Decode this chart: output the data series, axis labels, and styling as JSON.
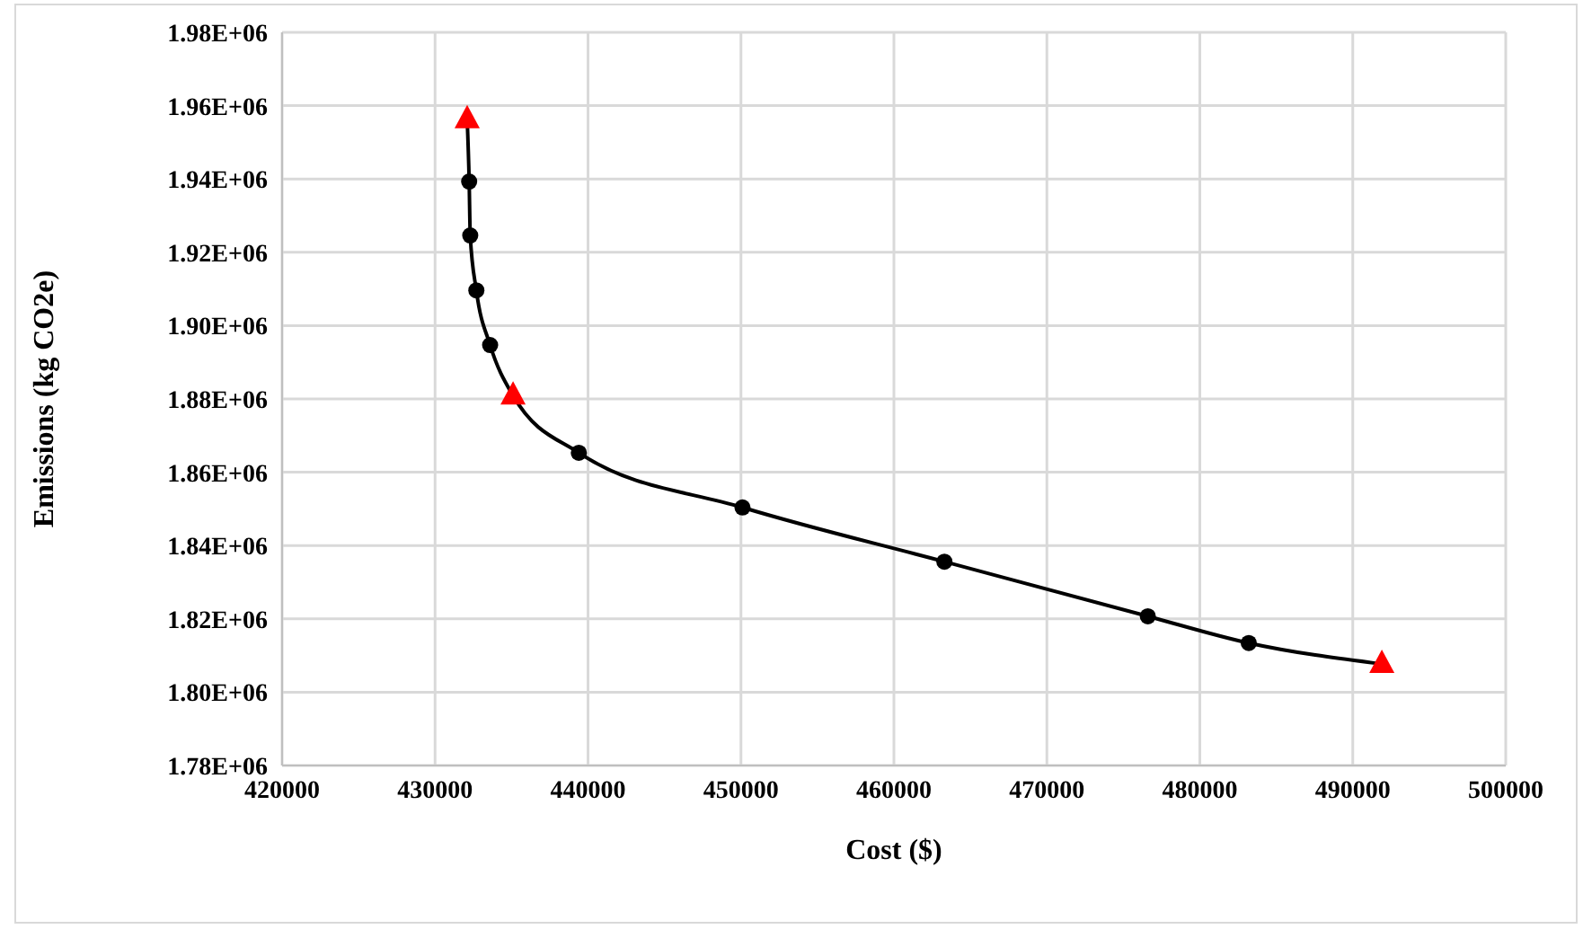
{
  "chart_data": {
    "type": "line",
    "xlabel": "Cost ($)",
    "ylabel": "Emissions (kg CO2e)",
    "xlim": [
      420000,
      500000
    ],
    "xticks": [
      420000,
      430000,
      440000,
      450000,
      460000,
      470000,
      480000,
      490000,
      500000
    ],
    "ylim": [
      1780000,
      1980000
    ],
    "yticks": [
      {
        "value": 1780000,
        "label": "1.78E+06"
      },
      {
        "value": 1800000,
        "label": "1.80E+06"
      },
      {
        "value": 1820000,
        "label": "1.82E+06"
      },
      {
        "value": 1840000,
        "label": "1.84E+06"
      },
      {
        "value": 1860000,
        "label": "1.86E+06"
      },
      {
        "value": 1880000,
        "label": "1.88E+06"
      },
      {
        "value": 1900000,
        "label": "1.90E+06"
      },
      {
        "value": 1920000,
        "label": "1.92E+06"
      },
      {
        "value": 1940000,
        "label": "1.94E+06"
      },
      {
        "value": 1960000,
        "label": "1.96E+06"
      },
      {
        "value": 1980000,
        "label": "1.98E+06"
      }
    ],
    "grid": true,
    "series": [
      {
        "color": "#000000",
        "marker": "none",
        "x": [
          432100,
          432230,
          432300,
          432700,
          433600,
          435100,
          439400,
          450100,
          463300,
          476600,
          483200,
          491900
        ],
        "values": [
          1956300,
          1939300,
          1924600,
          1909600,
          1894700,
          1880900,
          1865300,
          1850400,
          1835600,
          1820700,
          1813400,
          1807700
        ]
      },
      {
        "type": "scatter",
        "color": "#000000",
        "marker": "circle",
        "x": [
          432230,
          432300,
          432700,
          433600,
          439400,
          450100,
          463300,
          476600,
          483200
        ],
        "values": [
          1939300,
          1924600,
          1909600,
          1894700,
          1865300,
          1850400,
          1835600,
          1820700,
          1813400
        ]
      },
      {
        "type": "scatter",
        "color": "#ff0000",
        "marker": "triangle",
        "x": [
          432100,
          435100,
          491900
        ],
        "values": [
          1956300,
          1880900,
          1807700
        ]
      }
    ]
  }
}
